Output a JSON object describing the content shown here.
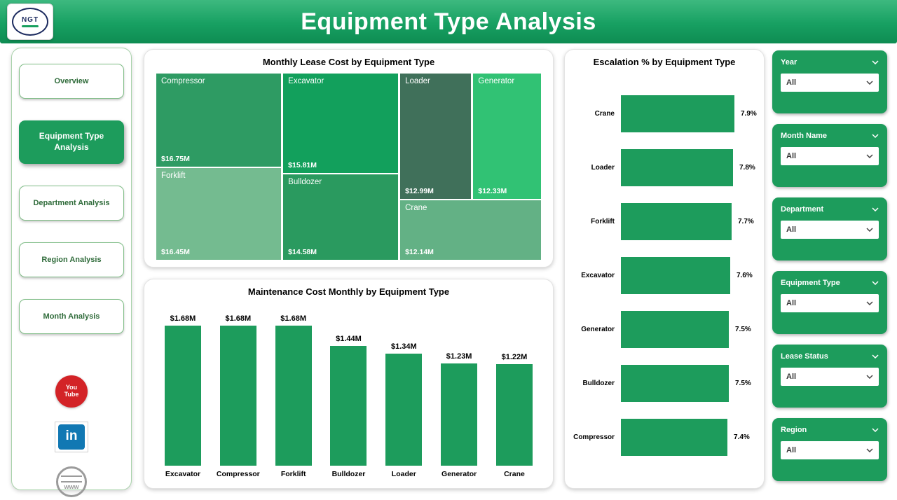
{
  "header": {
    "title": "Equipment Type Analysis",
    "logo_text": "NGT"
  },
  "sidebar": {
    "items": [
      {
        "label": "Overview",
        "active": false
      },
      {
        "label": "Equipment Type Analysis",
        "active": true
      },
      {
        "label": "Department Analysis",
        "active": false
      },
      {
        "label": "Region Analysis",
        "active": false
      },
      {
        "label": "Month Analysis",
        "active": false
      }
    ],
    "social": [
      {
        "name": "youtube",
        "line1": "You",
        "line2": "Tube"
      },
      {
        "name": "linkedin",
        "text": "in"
      },
      {
        "name": "website",
        "text": "www"
      }
    ]
  },
  "chart_data": [
    {
      "type": "treemap",
      "title": "Monthly Lease Cost by Equipment Type",
      "unit": "USD millions",
      "items": [
        {
          "label": "Compressor",
          "value": 16.75,
          "value_label": "$16.75M",
          "color": "#2e9b63"
        },
        {
          "label": "Excavator",
          "value": 15.81,
          "value_label": "$15.81M",
          "color": "#12a05c"
        },
        {
          "label": "Loader",
          "value": 12.99,
          "value_label": "$12.99M",
          "color": "#40705a"
        },
        {
          "label": "Generator",
          "value": 12.33,
          "value_label": "$12.33M",
          "color": "#31c274"
        },
        {
          "label": "Forklift",
          "value": 16.45,
          "value_label": "$16.45M",
          "color": "#74bb90"
        },
        {
          "label": "Bulldozer",
          "value": 14.58,
          "value_label": "$14.58M",
          "color": "#2a9a5f"
        },
        {
          "label": "Crane",
          "value": 12.14,
          "value_label": "$12.14M",
          "color": "#63b185"
        }
      ]
    },
    {
      "type": "bar",
      "title": "Maintenance Cost Monthly by Equipment Type",
      "categories": [
        "Excavator",
        "Compressor",
        "Forklift",
        "Bulldozer",
        "Loader",
        "Generator",
        "Crane"
      ],
      "values": [
        1.68,
        1.68,
        1.68,
        1.44,
        1.34,
        1.23,
        1.22
      ],
      "value_labels": [
        "$1.68M",
        "$1.68M",
        "$1.68M",
        "$1.44M",
        "$1.34M",
        "$1.23M",
        "$1.22M"
      ],
      "bar_color": "#1d9c5c",
      "ylim": [
        0,
        1.68
      ],
      "grid": false,
      "legend": "none"
    },
    {
      "type": "bar-horizontal",
      "title": "Escalation % by Equipment Type",
      "categories": [
        "Crane",
        "Loader",
        "Forklift",
        "Excavator",
        "Generator",
        "Bulldozer",
        "Compressor"
      ],
      "values": [
        7.9,
        7.8,
        7.7,
        7.6,
        7.5,
        7.5,
        7.4
      ],
      "value_labels": [
        "7.9%",
        "7.8%",
        "7.7%",
        "7.6%",
        "7.5%",
        "7.5%",
        "7.4%"
      ],
      "bar_color": "#1d9c5c",
      "xlim": [
        0,
        7.9
      ],
      "grid": false,
      "legend": "none"
    }
  ],
  "filters": [
    {
      "label": "Year",
      "value": "All"
    },
    {
      "label": "Month Name",
      "value": "All"
    },
    {
      "label": "Department",
      "value": "All"
    },
    {
      "label": "Equipment Type",
      "value": "All"
    },
    {
      "label": "Lease Status",
      "value": "All"
    },
    {
      "label": "Region",
      "value": "All"
    }
  ],
  "colors": {
    "primary_green": "#1d9c5c",
    "header_gradient_top": "#3db97f",
    "header_gradient_bottom": "#0e8c52",
    "youtube_red": "#d32327",
    "linkedin_blue": "#1178b3"
  }
}
